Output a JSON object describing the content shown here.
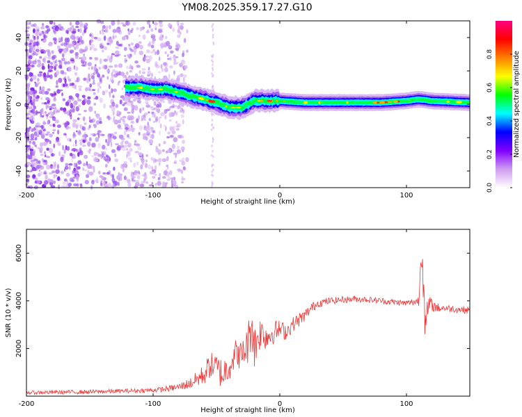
{
  "title": "YM08.2025.359.17.27.G10",
  "chart_data": [
    {
      "type": "heatmap",
      "title": "YM08.2025.359.17.27.G10",
      "xlabel": "Height of straight line (km)",
      "ylabel": "Frequency (Hz)",
      "xlim": [
        -200,
        150
      ],
      "ylim": [
        -50,
        50
      ],
      "xticks": [
        "-200",
        "-100",
        "0",
        "100"
      ],
      "xtick_values": [
        -200,
        -100,
        0,
        100
      ],
      "yticks": [
        "40",
        "20",
        "0",
        "-20",
        "-40"
      ],
      "ytick_values": [
        40,
        20,
        0,
        -20,
        -40
      ],
      "colorbar": {
        "label": "Normalized spectral amplitude",
        "range": [
          0,
          1
        ],
        "ticks": [
          "0.0",
          "0.2",
          "0.4",
          "0.6",
          "0.8"
        ],
        "tick_values": [
          0,
          0.2,
          0.4,
          0.6,
          0.8
        ],
        "colors": [
          "#ffffff",
          "#cf9cf0",
          "#8000ff",
          "#0000ff",
          "#00ffff",
          "#00ff00",
          "#ffff00",
          "#ff8000",
          "#ff0000",
          "#ff0080"
        ]
      },
      "noise_region_x": [
        -200,
        -73
      ],
      "noise_spike_x": -53,
      "ridge_x": [
        -122,
        -110,
        -100,
        -90,
        -80,
        -70,
        -60,
        -50,
        -40,
        -30,
        -20,
        -10,
        0,
        20,
        50,
        80,
        100,
        110,
        120,
        150
      ],
      "ridge_freq_hz": [
        10,
        10,
        9,
        9,
        7,
        5,
        3,
        1,
        -2,
        -2,
        2,
        2,
        2,
        1,
        1,
        1,
        2,
        3,
        2,
        1
      ]
    },
    {
      "type": "line",
      "xlabel": "Height of straight line (km)",
      "ylabel": "SNR (10 * v/v)",
      "xlim": [
        -200,
        150
      ],
      "ylim": [
        0,
        7000
      ],
      "xticks": [
        "-200",
        "-100",
        "0",
        "100"
      ],
      "xtick_values": [
        -200,
        -100,
        0,
        100
      ],
      "yticks": [
        "6000",
        "4000",
        "2000"
      ],
      "ytick_values": [
        6000,
        4000,
        2000
      ],
      "series": [
        {
          "name": "SNR",
          "color": "#ee3333",
          "x": [
            -200,
            -150,
            -120,
            -100,
            -90,
            -80,
            -70,
            -60,
            -55,
            -50,
            -45,
            -40,
            -35,
            -30,
            -25,
            -22,
            -20,
            -18,
            -15,
            -10,
            -5,
            0,
            5,
            10,
            15,
            20,
            25,
            30,
            40,
            50,
            60,
            70,
            80,
            90,
            100,
            105,
            110,
            112,
            115,
            118,
            120,
            125,
            130,
            140,
            150
          ],
          "y": [
            150,
            180,
            220,
            250,
            300,
            380,
            550,
            900,
            1300,
            1200,
            900,
            1300,
            1800,
            1700,
            2200,
            3200,
            2000,
            2400,
            2700,
            2500,
            2700,
            2800,
            2700,
            3000,
            3200,
            3400,
            3700,
            3900,
            4000,
            4050,
            4080,
            4050,
            4000,
            3950,
            3900,
            3950,
            4000,
            6800,
            2800,
            3900,
            3800,
            3700,
            3700,
            3650,
            3600
          ],
          "noise": [
            80,
            90,
            90,
            100,
            120,
            150,
            250,
            450,
            550,
            600,
            700,
            650,
            600,
            600,
            900,
            1100,
            1000,
            800,
            700,
            600,
            500,
            400,
            350,
            320,
            300,
            250,
            220,
            180,
            150,
            140,
            140,
            130,
            130,
            130,
            130,
            160,
            220,
            1200,
            900,
            450,
            250,
            200,
            150,
            150,
            150
          ]
        }
      ]
    }
  ]
}
